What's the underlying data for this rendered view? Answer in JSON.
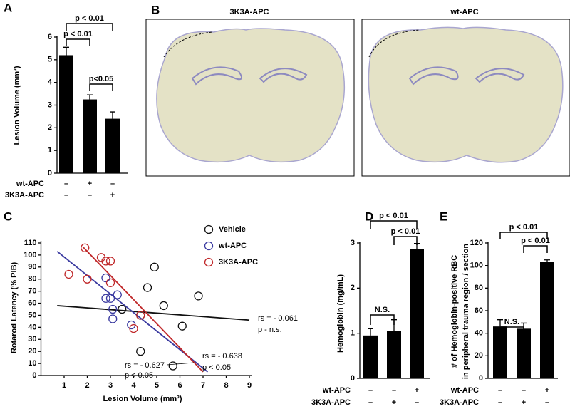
{
  "chart_data": [
    {
      "type": "bar",
      "panel": "A",
      "ylabel": "Lesion Volume (mm³)",
      "ylim": [
        0,
        6
      ],
      "yticks": [
        0,
        1,
        2,
        3,
        4,
        5,
        6
      ],
      "values": [
        5.2,
        3.25,
        2.4
      ],
      "errors": [
        0.35,
        0.2,
        0.3
      ],
      "color": "#000000",
      "conditions": [
        {
          "label": "wt-APC",
          "marks": [
            "–",
            "+",
            "–"
          ]
        },
        {
          "label": "3K3A-APC",
          "marks": [
            "–",
            "–",
            "+"
          ]
        }
      ],
      "annotations": [
        "p < 0.01",
        "p < 0.01",
        "p<0.05"
      ]
    },
    {
      "type": "scatter",
      "panel": "C",
      "xlabel": "Lesion Volume (mm³)",
      "ylabel": "Rotarod Latency (% PIB)",
      "xlim": [
        0,
        9
      ],
      "xticks": [
        1,
        2,
        3,
        4,
        5,
        6,
        7,
        8,
        9
      ],
      "ylim": [
        0,
        110
      ],
      "yticks": [
        0,
        10,
        20,
        30,
        40,
        50,
        60,
        70,
        80,
        90,
        100,
        110
      ],
      "series": [
        {
          "name": "Vehicle",
          "color": "#111111",
          "x": [
            3.5,
            4.6,
            4.9,
            5.3,
            4.3,
            5.7,
            6.1,
            6.8,
            4.3
          ],
          "values": [
            55,
            73,
            90,
            58,
            20,
            8,
            41,
            66,
            50
          ]
        },
        {
          "name": "wt-APC",
          "color": "#3a3aa0",
          "x": [
            2.8,
            2.8,
            3.0,
            3.3,
            3.1,
            3.9,
            3.1
          ],
          "values": [
            81,
            64,
            64,
            67,
            47,
            42,
            55
          ]
        },
        {
          "name": "3K3A-APC",
          "color": "#c0282a",
          "x": [
            1.2,
            1.9,
            2.0,
            2.6,
            2.8,
            3.0,
            3.0,
            4.0,
            4.3
          ],
          "values": [
            84,
            106,
            80,
            98,
            95,
            95,
            77,
            39,
            50
          ]
        }
      ],
      "fits": [
        {
          "color": "#111111",
          "x": [
            0.7,
            9
          ],
          "values": [
            58,
            46
          ]
        },
        {
          "color": "#3a3aa0",
          "x": [
            0.7,
            7.2
          ],
          "values": [
            103,
            3
          ]
        },
        {
          "color": "#c0282a",
          "x": [
            1.8,
            7.0
          ],
          "values": [
            107,
            3
          ]
        }
      ],
      "annotations": [
        "rs = - 0.061",
        "p - n.s.",
        "rs = - 0.638",
        "p < 0.05",
        "rs = - 0.627",
        "p < 0.05"
      ]
    },
    {
      "type": "bar",
      "panel": "D",
      "ylabel": "Hemoglobin (mg/mL)",
      "ylim": [
        0,
        3
      ],
      "yticks": [
        0,
        1,
        2,
        3
      ],
      "values": [
        0.95,
        1.05,
        2.87
      ],
      "errors": [
        0.15,
        0.25,
        0.12
      ],
      "color": "#000000",
      "conditions": [
        {
          "label": "wt-APC",
          "marks": [
            "–",
            "–",
            "+"
          ]
        },
        {
          "label": "3K3A-APC",
          "marks": [
            "–",
            "+",
            "–"
          ]
        }
      ],
      "annotations": [
        "p < 0.01",
        "p < 0.01",
        "N.S."
      ]
    },
    {
      "type": "bar",
      "panel": "E",
      "ylabel": [
        "# of Hemoglobin-positive RBC",
        "in peripheral trauma region / section"
      ],
      "ylim": [
        0,
        120
      ],
      "yticks": [
        0,
        20,
        40,
        60,
        80,
        100,
        120
      ],
      "values": [
        46,
        44,
        103
      ],
      "errors": [
        6,
        5,
        2
      ],
      "color": "#000000",
      "conditions": [
        {
          "label": "wt-APC",
          "marks": [
            "–",
            "–",
            "+"
          ]
        },
        {
          "label": "3K3A-APC",
          "marks": [
            "–",
            "+",
            "–"
          ]
        }
      ],
      "annotations": [
        "p < 0.01",
        "p < 0.01",
        "N.S."
      ]
    }
  ],
  "images": {
    "panel": "B",
    "titles": [
      "3K3A-APC",
      "wt-APC"
    ]
  }
}
